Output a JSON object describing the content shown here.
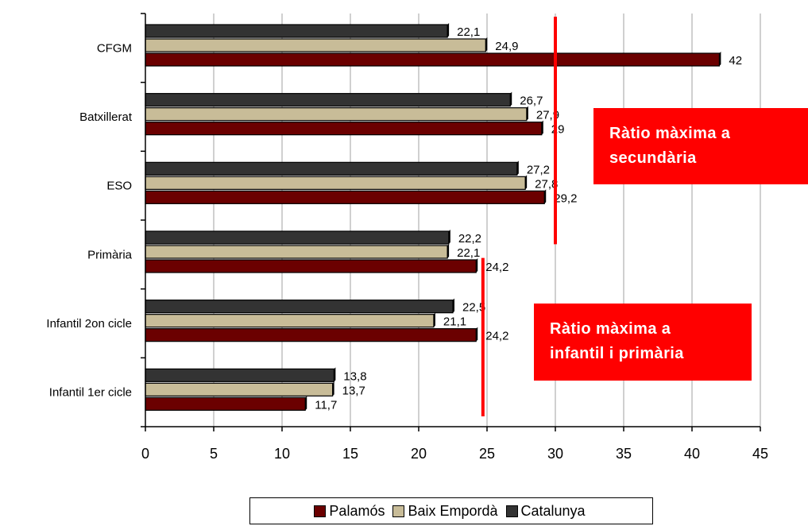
{
  "chart_data": {
    "type": "bar",
    "orientation": "horizontal",
    "categories": [
      "CFGM",
      "Batxillerat",
      "ESO",
      "Primària",
      "Infantil 2on cicle",
      "Infantil 1er cicle"
    ],
    "series": [
      {
        "name": "Catalunya",
        "color": "#333333",
        "values": [
          22.1,
          26.7,
          27.2,
          22.2,
          22.5,
          13.8
        ],
        "labels": [
          "22,1",
          "26,7",
          "27,2",
          "22,2",
          "22,5",
          "13,8"
        ]
      },
      {
        "name": "Baix Empordà",
        "color": "#C8BC98",
        "values": [
          24.9,
          27.9,
          27.8,
          22.1,
          21.1,
          13.7
        ],
        "labels": [
          "24,9",
          "27,9",
          "27,8",
          "22,1",
          "21,1",
          "13,7"
        ]
      },
      {
        "name": "Palamós",
        "color": "#6B0000",
        "values": [
          42,
          29,
          29.2,
          24.2,
          24.2,
          11.7
        ],
        "labels": [
          "42",
          "29",
          "29,2",
          "24,2",
          "24,2",
          "11,7"
        ]
      }
    ],
    "x_ticks": [
      "0",
      "5",
      "10",
      "15",
      "20",
      "25",
      "30",
      "35",
      "40",
      "45"
    ],
    "xlim": [
      0,
      45
    ],
    "grid": true,
    "reference_lines": [
      {
        "value": 30,
        "from_category": "CFGM",
        "to_category": "Primària",
        "color": "#ff0000"
      },
      {
        "value": 24.7,
        "from_category": "Primària",
        "to_category": "Infantil 1er cicle",
        "color": "#ff0000"
      }
    ],
    "annotations": [
      {
        "id": "secondary",
        "text": "Ràtio màxima a\nsecundària"
      },
      {
        "id": "primary",
        "text": "Ràtio màxima a\ninfantil i primària"
      }
    ],
    "legend": {
      "position": "bottom",
      "entries": [
        {
          "name": "Palamós",
          "color": "#6B0000"
        },
        {
          "name": "Baix Empordà",
          "color": "#C8BC98"
        },
        {
          "name": "Catalunya",
          "color": "#333333"
        }
      ]
    }
  }
}
